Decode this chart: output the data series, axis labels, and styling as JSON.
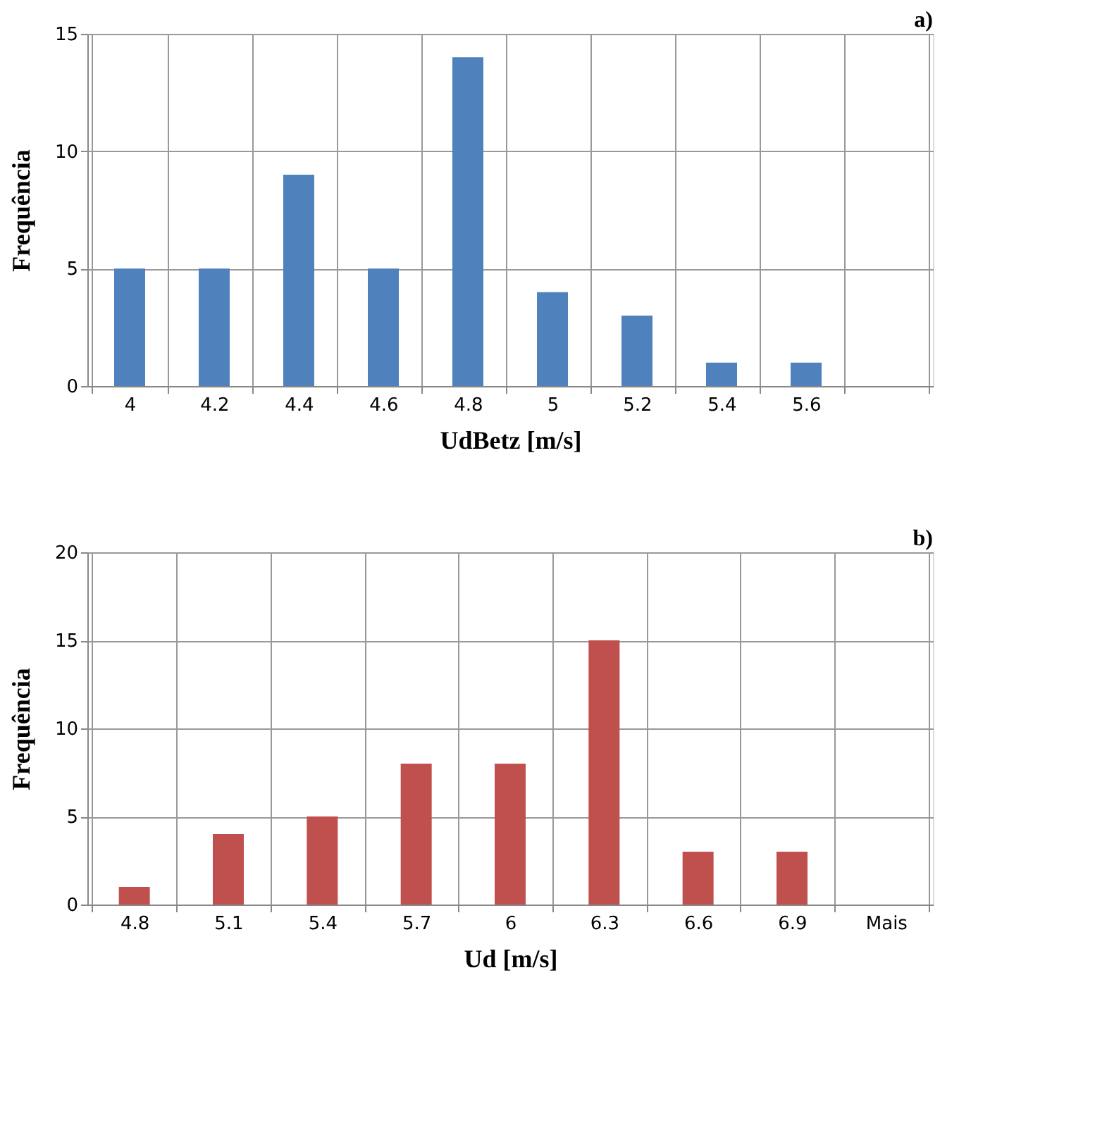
{
  "chart_data": [
    {
      "type": "bar",
      "categories": [
        "4",
        "4.2",
        "4.4",
        "4.6",
        "4.8",
        "5",
        "5.2",
        "5.4",
        "5.6",
        null
      ],
      "values": [
        5,
        5,
        9,
        5,
        14,
        4,
        3,
        1,
        1,
        0
      ],
      "color": "#4f81bd",
      "xlabel": "UdBetz [m/s]",
      "ylabel": "Frequência",
      "ylim": [
        0,
        15
      ],
      "yticks": [
        0,
        5,
        10,
        15
      ],
      "grid": true,
      "annotations": [
        "a)"
      ]
    },
    {
      "type": "bar",
      "categories": [
        "4.8",
        "5.1",
        "5.4",
        "5.7",
        "6",
        "6.3",
        "6.6",
        "6.9",
        "Mais"
      ],
      "values": [
        1,
        4,
        5,
        8,
        8,
        15,
        3,
        3,
        0
      ],
      "color": "#c0504d",
      "xlabel": "Ud [m/s]",
      "ylabel": "Frequência",
      "ylim": [
        0,
        20
      ],
      "yticks": [
        0,
        5,
        10,
        15,
        20
      ],
      "grid": true,
      "annotations": [
        "b)"
      ]
    }
  ]
}
